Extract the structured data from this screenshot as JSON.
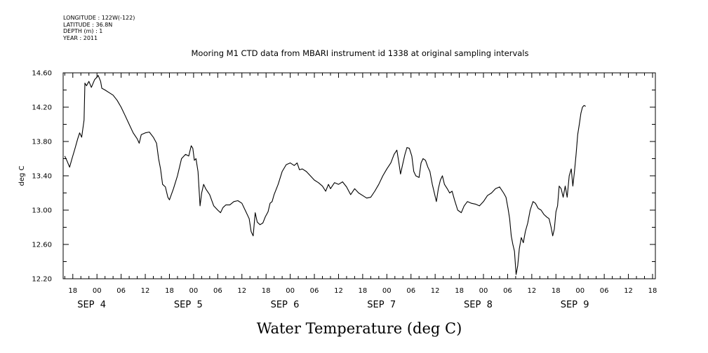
{
  "metadata": {
    "longitude": "LONGITUDE : 122W(-122)",
    "latitude": "LATITUDE : 36.8N",
    "depth": "DEPTH (m) : 1",
    "year": "YEAR : 2011"
  },
  "chart_data": {
    "type": "line",
    "title": "Mooring M1 CTD data from MBARI instrument id 1338 at original sampling intervals",
    "xlabel": "Water Temperature (deg C)",
    "ylabel": "deg C",
    "ylim": [
      12.2,
      14.6
    ],
    "y_ticks": [
      "12.20",
      "12.60",
      "13.00",
      "13.40",
      "13.80",
      "14.20",
      "14.60"
    ],
    "x_unit": "hours since 2011-09-04 00:00",
    "xlim": [
      -8.4,
      138.7
    ],
    "hour_ticks": [
      {
        "h": -6,
        "label": "18"
      },
      {
        "h": 0,
        "label": "00"
      },
      {
        "h": 6,
        "label": "06"
      },
      {
        "h": 12,
        "label": "12"
      },
      {
        "h": 18,
        "label": "18"
      },
      {
        "h": 24,
        "label": "00"
      },
      {
        "h": 30,
        "label": "06"
      },
      {
        "h": 36,
        "label": "12"
      },
      {
        "h": 42,
        "label": "18"
      },
      {
        "h": 48,
        "label": "00"
      },
      {
        "h": 54,
        "label": "06"
      },
      {
        "h": 60,
        "label": "12"
      },
      {
        "h": 66,
        "label": "18"
      },
      {
        "h": 72,
        "label": "00"
      },
      {
        "h": 78,
        "label": "06"
      },
      {
        "h": 84,
        "label": "12"
      },
      {
        "h": 90,
        "label": "18"
      },
      {
        "h": 96,
        "label": "00"
      },
      {
        "h": 102,
        "label": "06"
      },
      {
        "h": 108,
        "label": "12"
      },
      {
        "h": 114,
        "label": "18"
      },
      {
        "h": 120,
        "label": "00"
      },
      {
        "h": 126,
        "label": "06"
      },
      {
        "h": 132,
        "label": "12"
      },
      {
        "h": 138,
        "label": "18"
      }
    ],
    "date_labels": [
      {
        "label": "SEP  4",
        "x": 0
      },
      {
        "label": "SEP  5",
        "x": 24
      },
      {
        "label": "SEP  6",
        "x": 48
      },
      {
        "label": "SEP  7",
        "x": 72
      },
      {
        "label": "SEP  8",
        "x": 96
      },
      {
        "label": "SEP  9",
        "x": 120
      }
    ],
    "series": [
      {
        "line_color": "#000000",
        "points": [
          [
            -8.0,
            13.63
          ],
          [
            -7.4,
            13.57
          ],
          [
            -6.8,
            13.5
          ],
          [
            -6.2,
            13.6
          ],
          [
            -5.5,
            13.71
          ],
          [
            -4.8,
            13.83
          ],
          [
            -4.3,
            13.9
          ],
          [
            -3.8,
            13.85
          ],
          [
            -3.2,
            14.05
          ],
          [
            -3.0,
            14.48
          ],
          [
            -2.6,
            14.45
          ],
          [
            -2.0,
            14.5
          ],
          [
            -1.4,
            14.43
          ],
          [
            -0.6,
            14.52
          ],
          [
            0.0,
            14.55
          ],
          [
            0.3,
            14.57
          ],
          [
            0.9,
            14.5
          ],
          [
            1.2,
            14.42
          ],
          [
            2.0,
            14.4
          ],
          [
            3.0,
            14.37
          ],
          [
            4.0,
            14.34
          ],
          [
            5.0,
            14.28
          ],
          [
            6.0,
            14.2
          ],
          [
            7.0,
            14.1
          ],
          [
            8.0,
            14.0
          ],
          [
            9.0,
            13.9
          ],
          [
            10.0,
            13.83
          ],
          [
            10.5,
            13.78
          ],
          [
            11.0,
            13.88
          ],
          [
            12.0,
            13.9
          ],
          [
            13.0,
            13.91
          ],
          [
            14.0,
            13.85
          ],
          [
            14.8,
            13.78
          ],
          [
            15.3,
            13.6
          ],
          [
            15.8,
            13.48
          ],
          [
            16.3,
            13.3
          ],
          [
            17.0,
            13.27
          ],
          [
            17.6,
            13.15
          ],
          [
            18.0,
            13.12
          ],
          [
            19.0,
            13.25
          ],
          [
            20.0,
            13.4
          ],
          [
            21.0,
            13.6
          ],
          [
            22.0,
            13.65
          ],
          [
            22.8,
            13.63
          ],
          [
            23.4,
            13.75
          ],
          [
            23.8,
            13.72
          ],
          [
            24.2,
            13.58
          ],
          [
            24.6,
            13.6
          ],
          [
            25.1,
            13.45
          ],
          [
            25.6,
            13.05
          ],
          [
            26.0,
            13.2
          ],
          [
            26.5,
            13.3
          ],
          [
            27.0,
            13.25
          ],
          [
            28.0,
            13.18
          ],
          [
            29.0,
            13.05
          ],
          [
            30.0,
            13.0
          ],
          [
            30.7,
            12.97
          ],
          [
            31.3,
            13.03
          ],
          [
            32.0,
            13.06
          ],
          [
            33.0,
            13.06
          ],
          [
            34.0,
            13.1
          ],
          [
            35.0,
            13.11
          ],
          [
            36.0,
            13.08
          ],
          [
            37.0,
            12.98
          ],
          [
            37.8,
            12.9
          ],
          [
            38.3,
            12.75
          ],
          [
            38.8,
            12.7
          ],
          [
            39.3,
            12.97
          ],
          [
            39.8,
            12.86
          ],
          [
            40.5,
            12.83
          ],
          [
            41.2,
            12.85
          ],
          [
            41.8,
            12.92
          ],
          [
            42.5,
            12.98
          ],
          [
            43.0,
            13.08
          ],
          [
            43.5,
            13.1
          ],
          [
            44.0,
            13.18
          ],
          [
            45.0,
            13.3
          ],
          [
            46.0,
            13.45
          ],
          [
            47.0,
            13.53
          ],
          [
            48.0,
            13.55
          ],
          [
            49.0,
            13.52
          ],
          [
            49.7,
            13.55
          ],
          [
            50.3,
            13.47
          ],
          [
            51.0,
            13.48
          ],
          [
            52.0,
            13.45
          ],
          [
            53.0,
            13.4
          ],
          [
            54.0,
            13.35
          ],
          [
            55.0,
            13.32
          ],
          [
            56.0,
            13.28
          ],
          [
            56.8,
            13.22
          ],
          [
            57.5,
            13.3
          ],
          [
            58.0,
            13.25
          ],
          [
            59.0,
            13.32
          ],
          [
            60.0,
            13.3
          ],
          [
            61.0,
            13.33
          ],
          [
            62.0,
            13.27
          ],
          [
            63.0,
            13.18
          ],
          [
            64.0,
            13.25
          ],
          [
            65.0,
            13.2
          ],
          [
            66.0,
            13.17
          ],
          [
            67.0,
            13.14
          ],
          [
            68.0,
            13.15
          ],
          [
            69.0,
            13.22
          ],
          [
            70.0,
            13.3
          ],
          [
            71.0,
            13.4
          ],
          [
            72.0,
            13.48
          ],
          [
            73.0,
            13.55
          ],
          [
            73.8,
            13.65
          ],
          [
            74.5,
            13.7
          ],
          [
            75.0,
            13.55
          ],
          [
            75.4,
            13.42
          ],
          [
            76.0,
            13.55
          ],
          [
            76.5,
            13.65
          ],
          [
            77.0,
            13.73
          ],
          [
            77.6,
            13.72
          ],
          [
            78.2,
            13.63
          ],
          [
            78.7,
            13.45
          ],
          [
            79.2,
            13.4
          ],
          [
            80.0,
            13.38
          ],
          [
            80.5,
            13.55
          ],
          [
            81.0,
            13.6
          ],
          [
            81.6,
            13.58
          ],
          [
            82.2,
            13.5
          ],
          [
            82.7,
            13.45
          ],
          [
            83.3,
            13.3
          ],
          [
            83.8,
            13.2
          ],
          [
            84.3,
            13.1
          ],
          [
            84.8,
            13.25
          ],
          [
            85.3,
            13.35
          ],
          [
            85.8,
            13.4
          ],
          [
            86.3,
            13.3
          ],
          [
            87.0,
            13.25
          ],
          [
            87.6,
            13.2
          ],
          [
            88.2,
            13.22
          ],
          [
            88.8,
            13.12
          ],
          [
            89.6,
            13.0
          ],
          [
            90.5,
            12.97
          ],
          [
            91.2,
            13.05
          ],
          [
            92.0,
            13.1
          ],
          [
            93.0,
            13.08
          ],
          [
            94.0,
            13.07
          ],
          [
            95.0,
            13.05
          ],
          [
            96.0,
            13.1
          ],
          [
            97.0,
            13.17
          ],
          [
            98.0,
            13.2
          ],
          [
            99.0,
            13.25
          ],
          [
            100.0,
            13.27
          ],
          [
            101.0,
            13.2
          ],
          [
            101.6,
            13.15
          ],
          [
            102.1,
            13.02
          ],
          [
            102.5,
            12.9
          ],
          [
            102.9,
            12.7
          ],
          [
            103.3,
            12.6
          ],
          [
            103.7,
            12.52
          ],
          [
            104.1,
            12.25
          ],
          [
            104.5,
            12.35
          ],
          [
            104.9,
            12.55
          ],
          [
            105.4,
            12.68
          ],
          [
            105.9,
            12.62
          ],
          [
            106.4,
            12.75
          ],
          [
            107.0,
            12.85
          ],
          [
            107.6,
            13.0
          ],
          [
            108.3,
            13.1
          ],
          [
            108.9,
            13.08
          ],
          [
            109.6,
            13.02
          ],
          [
            110.3,
            13.0
          ],
          [
            111.0,
            12.95
          ],
          [
            111.7,
            12.92
          ],
          [
            112.3,
            12.9
          ],
          [
            112.8,
            12.8
          ],
          [
            113.2,
            12.7
          ],
          [
            113.6,
            12.78
          ],
          [
            114.0,
            12.98
          ],
          [
            114.4,
            13.05
          ],
          [
            114.8,
            13.28
          ],
          [
            115.3,
            13.25
          ],
          [
            115.8,
            13.15
          ],
          [
            116.3,
            13.28
          ],
          [
            116.8,
            13.15
          ],
          [
            117.3,
            13.4
          ],
          [
            117.8,
            13.48
          ],
          [
            118.2,
            13.28
          ],
          [
            118.6,
            13.45
          ],
          [
            119.0,
            13.65
          ],
          [
            119.4,
            13.88
          ],
          [
            119.8,
            14.0
          ],
          [
            120.2,
            14.13
          ],
          [
            120.6,
            14.2
          ],
          [
            121.0,
            14.22
          ],
          [
            121.4,
            14.21
          ]
        ]
      }
    ]
  }
}
